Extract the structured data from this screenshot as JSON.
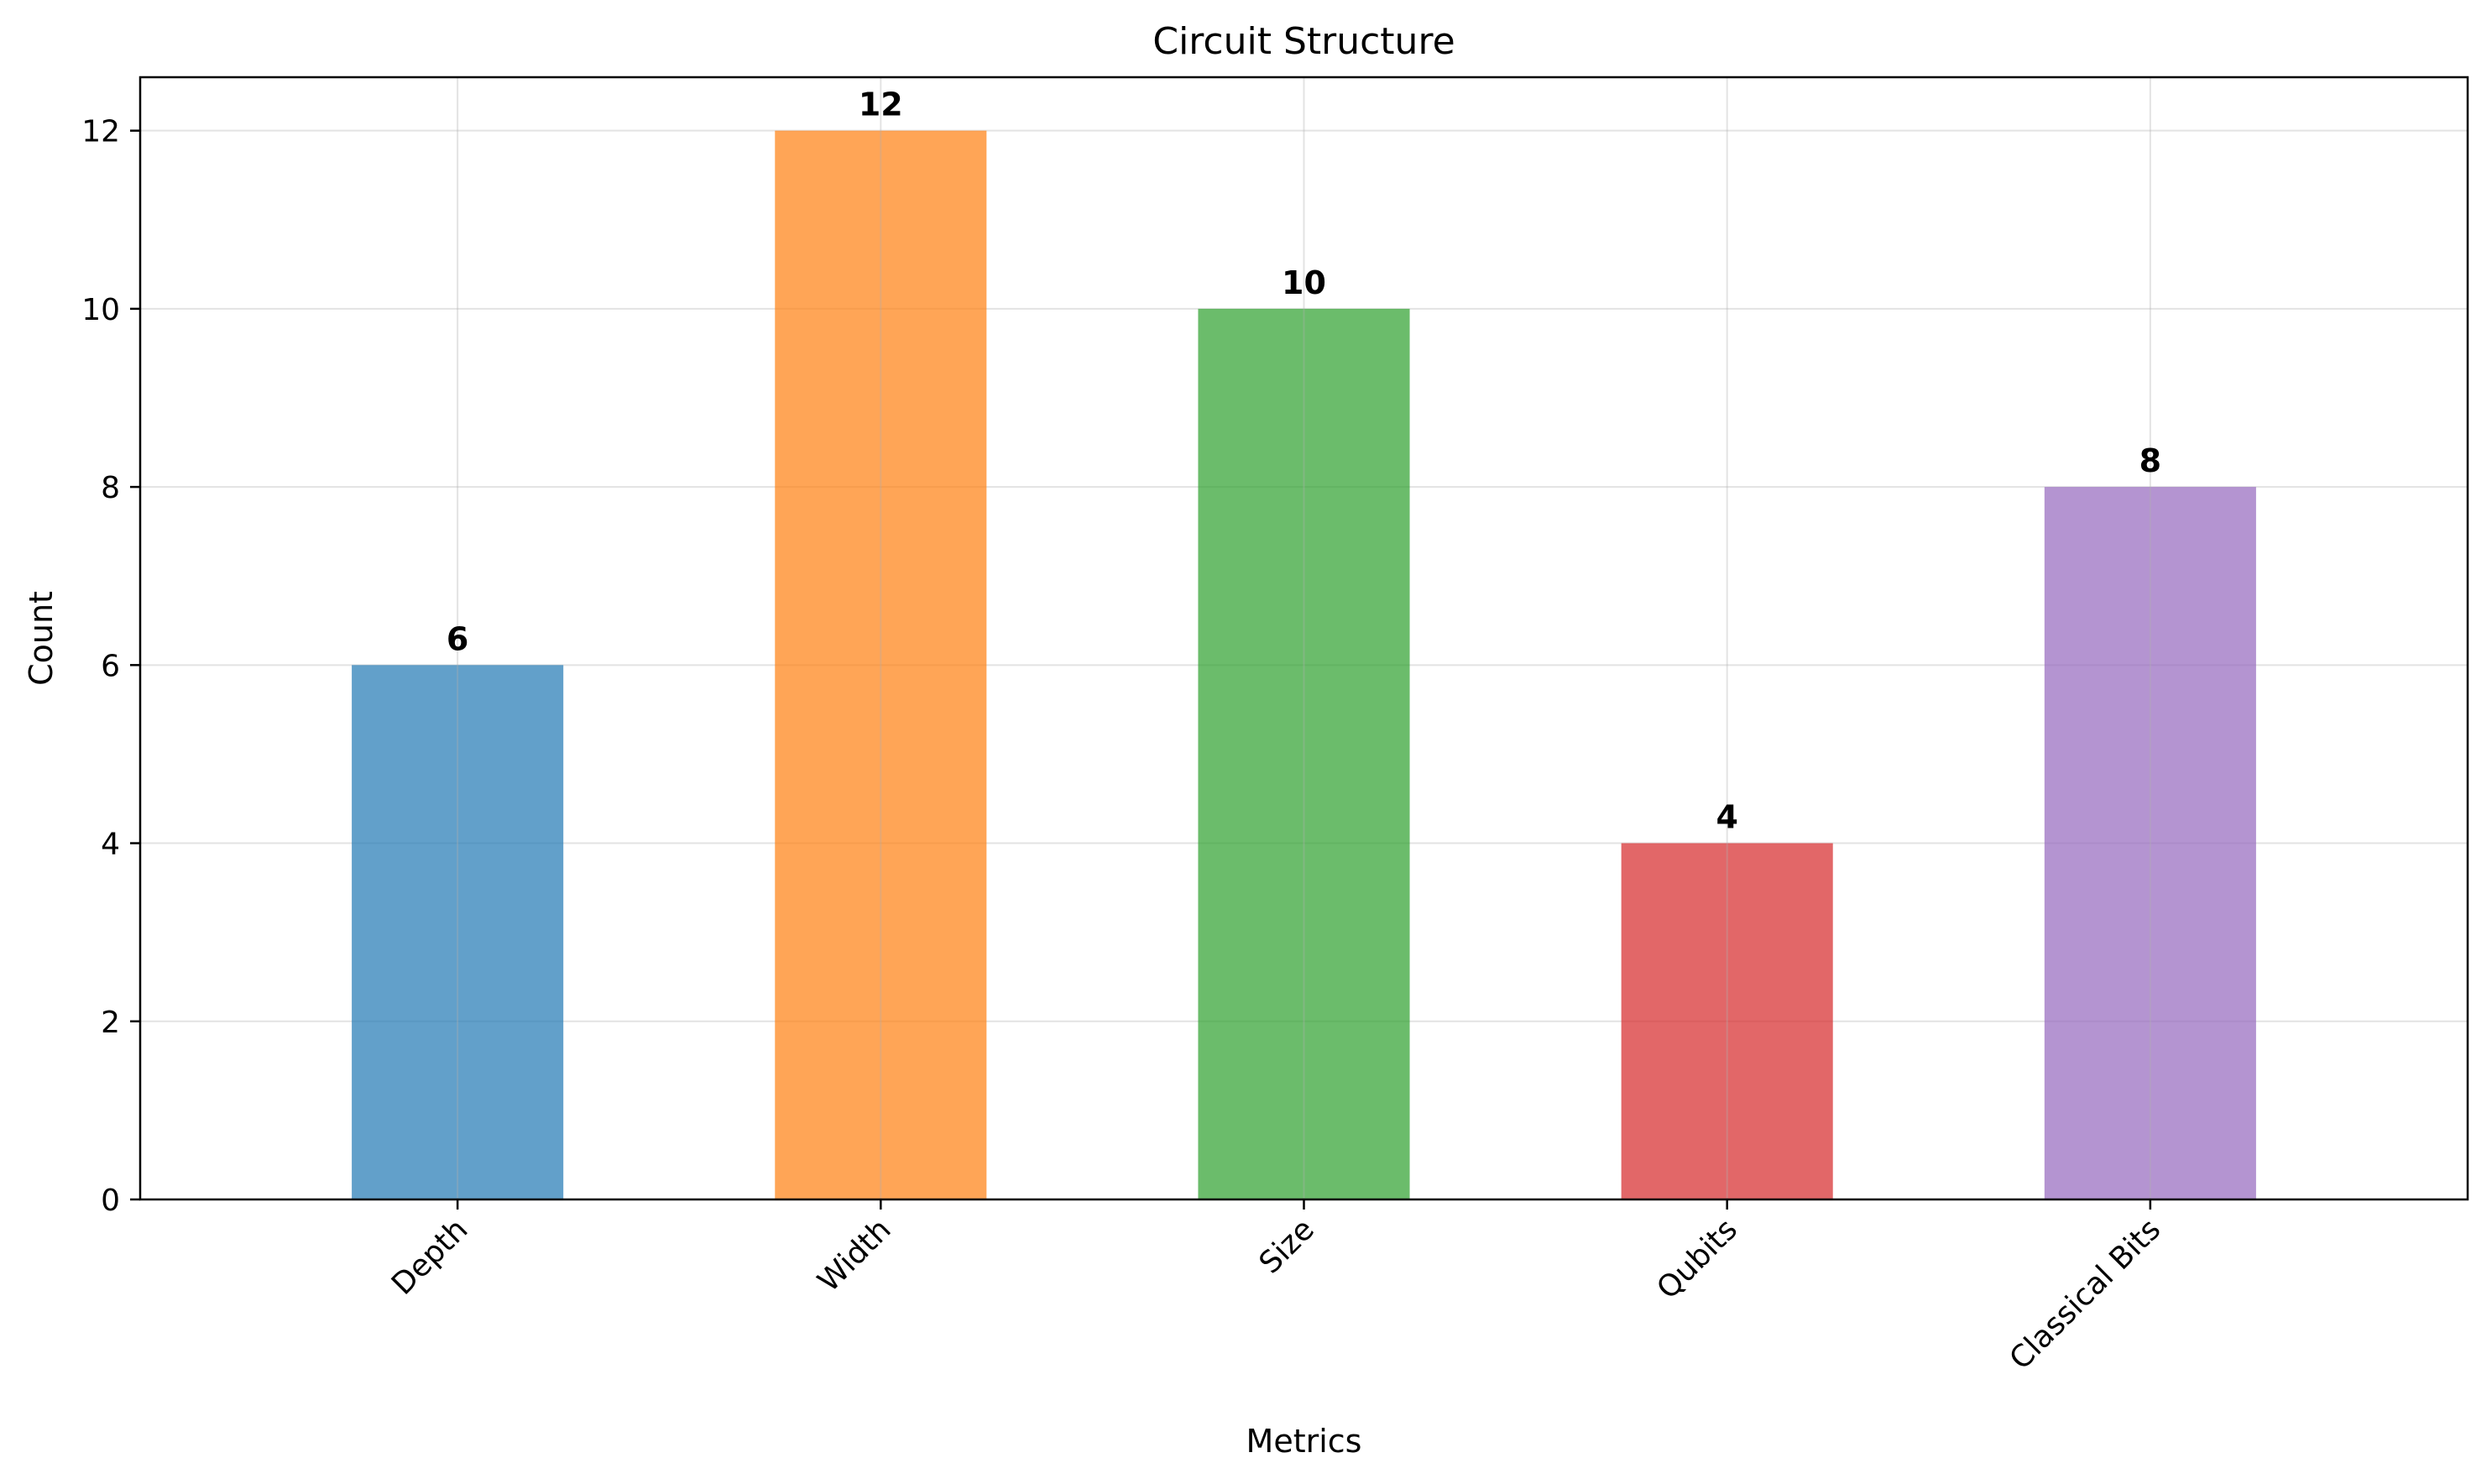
{
  "chart_data": {
    "type": "bar",
    "title": "Circuit Structure",
    "xlabel": "Metrics",
    "ylabel": "Count",
    "categories": [
      "Depth",
      "Width",
      "Size",
      "Qubits",
      "Classical Bits"
    ],
    "values": [
      6,
      12,
      10,
      4,
      8
    ],
    "colors": [
      "#1f77b4",
      "#ff7f0e",
      "#2ca02c",
      "#d62728",
      "#9467bd"
    ],
    "bar_opacity": 0.7,
    "ylim": [
      0,
      12.6
    ],
    "yticks": [
      0,
      2,
      4,
      6,
      8,
      10,
      12
    ],
    "grid": true,
    "data_labels": true
  }
}
